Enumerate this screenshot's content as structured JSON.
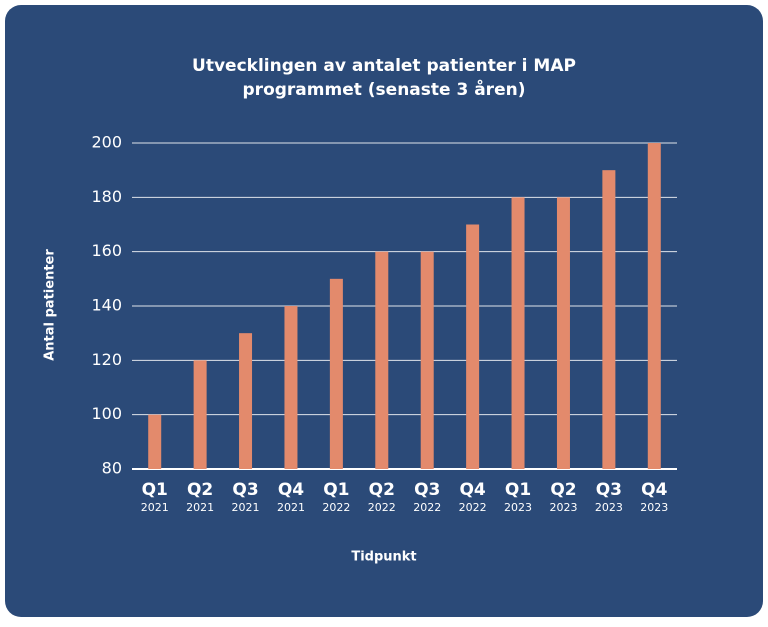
{
  "chart_data": {
    "type": "bar",
    "title": [
      "Utvecklingen av antalet patienter i MAP",
      "programmet (senaste 3 åren)"
    ],
    "y_label": "Antal patienter",
    "x_label": "Tidpunkt",
    "categories": [
      [
        "Q1",
        "2021"
      ],
      [
        "Q2",
        "2021"
      ],
      [
        "Q3",
        "2021"
      ],
      [
        "Q4",
        "2021"
      ],
      [
        "Q1",
        "2022"
      ],
      [
        "Q2",
        "2022"
      ],
      [
        "Q3",
        "2022"
      ],
      [
        "Q4",
        "2022"
      ],
      [
        "Q1",
        "2023"
      ],
      [
        "Q2",
        "2023"
      ],
      [
        "Q3",
        "2023"
      ],
      [
        "Q4",
        "2023"
      ]
    ],
    "values": [
      100,
      120,
      130,
      140,
      150,
      160,
      160,
      170,
      180,
      180,
      190,
      200
    ],
    "color": "#e38a6c",
    "ylim": [
      80,
      200
    ],
    "yticks": [
      80,
      100,
      120,
      140,
      160,
      180,
      200
    ],
    "grid": true
  }
}
